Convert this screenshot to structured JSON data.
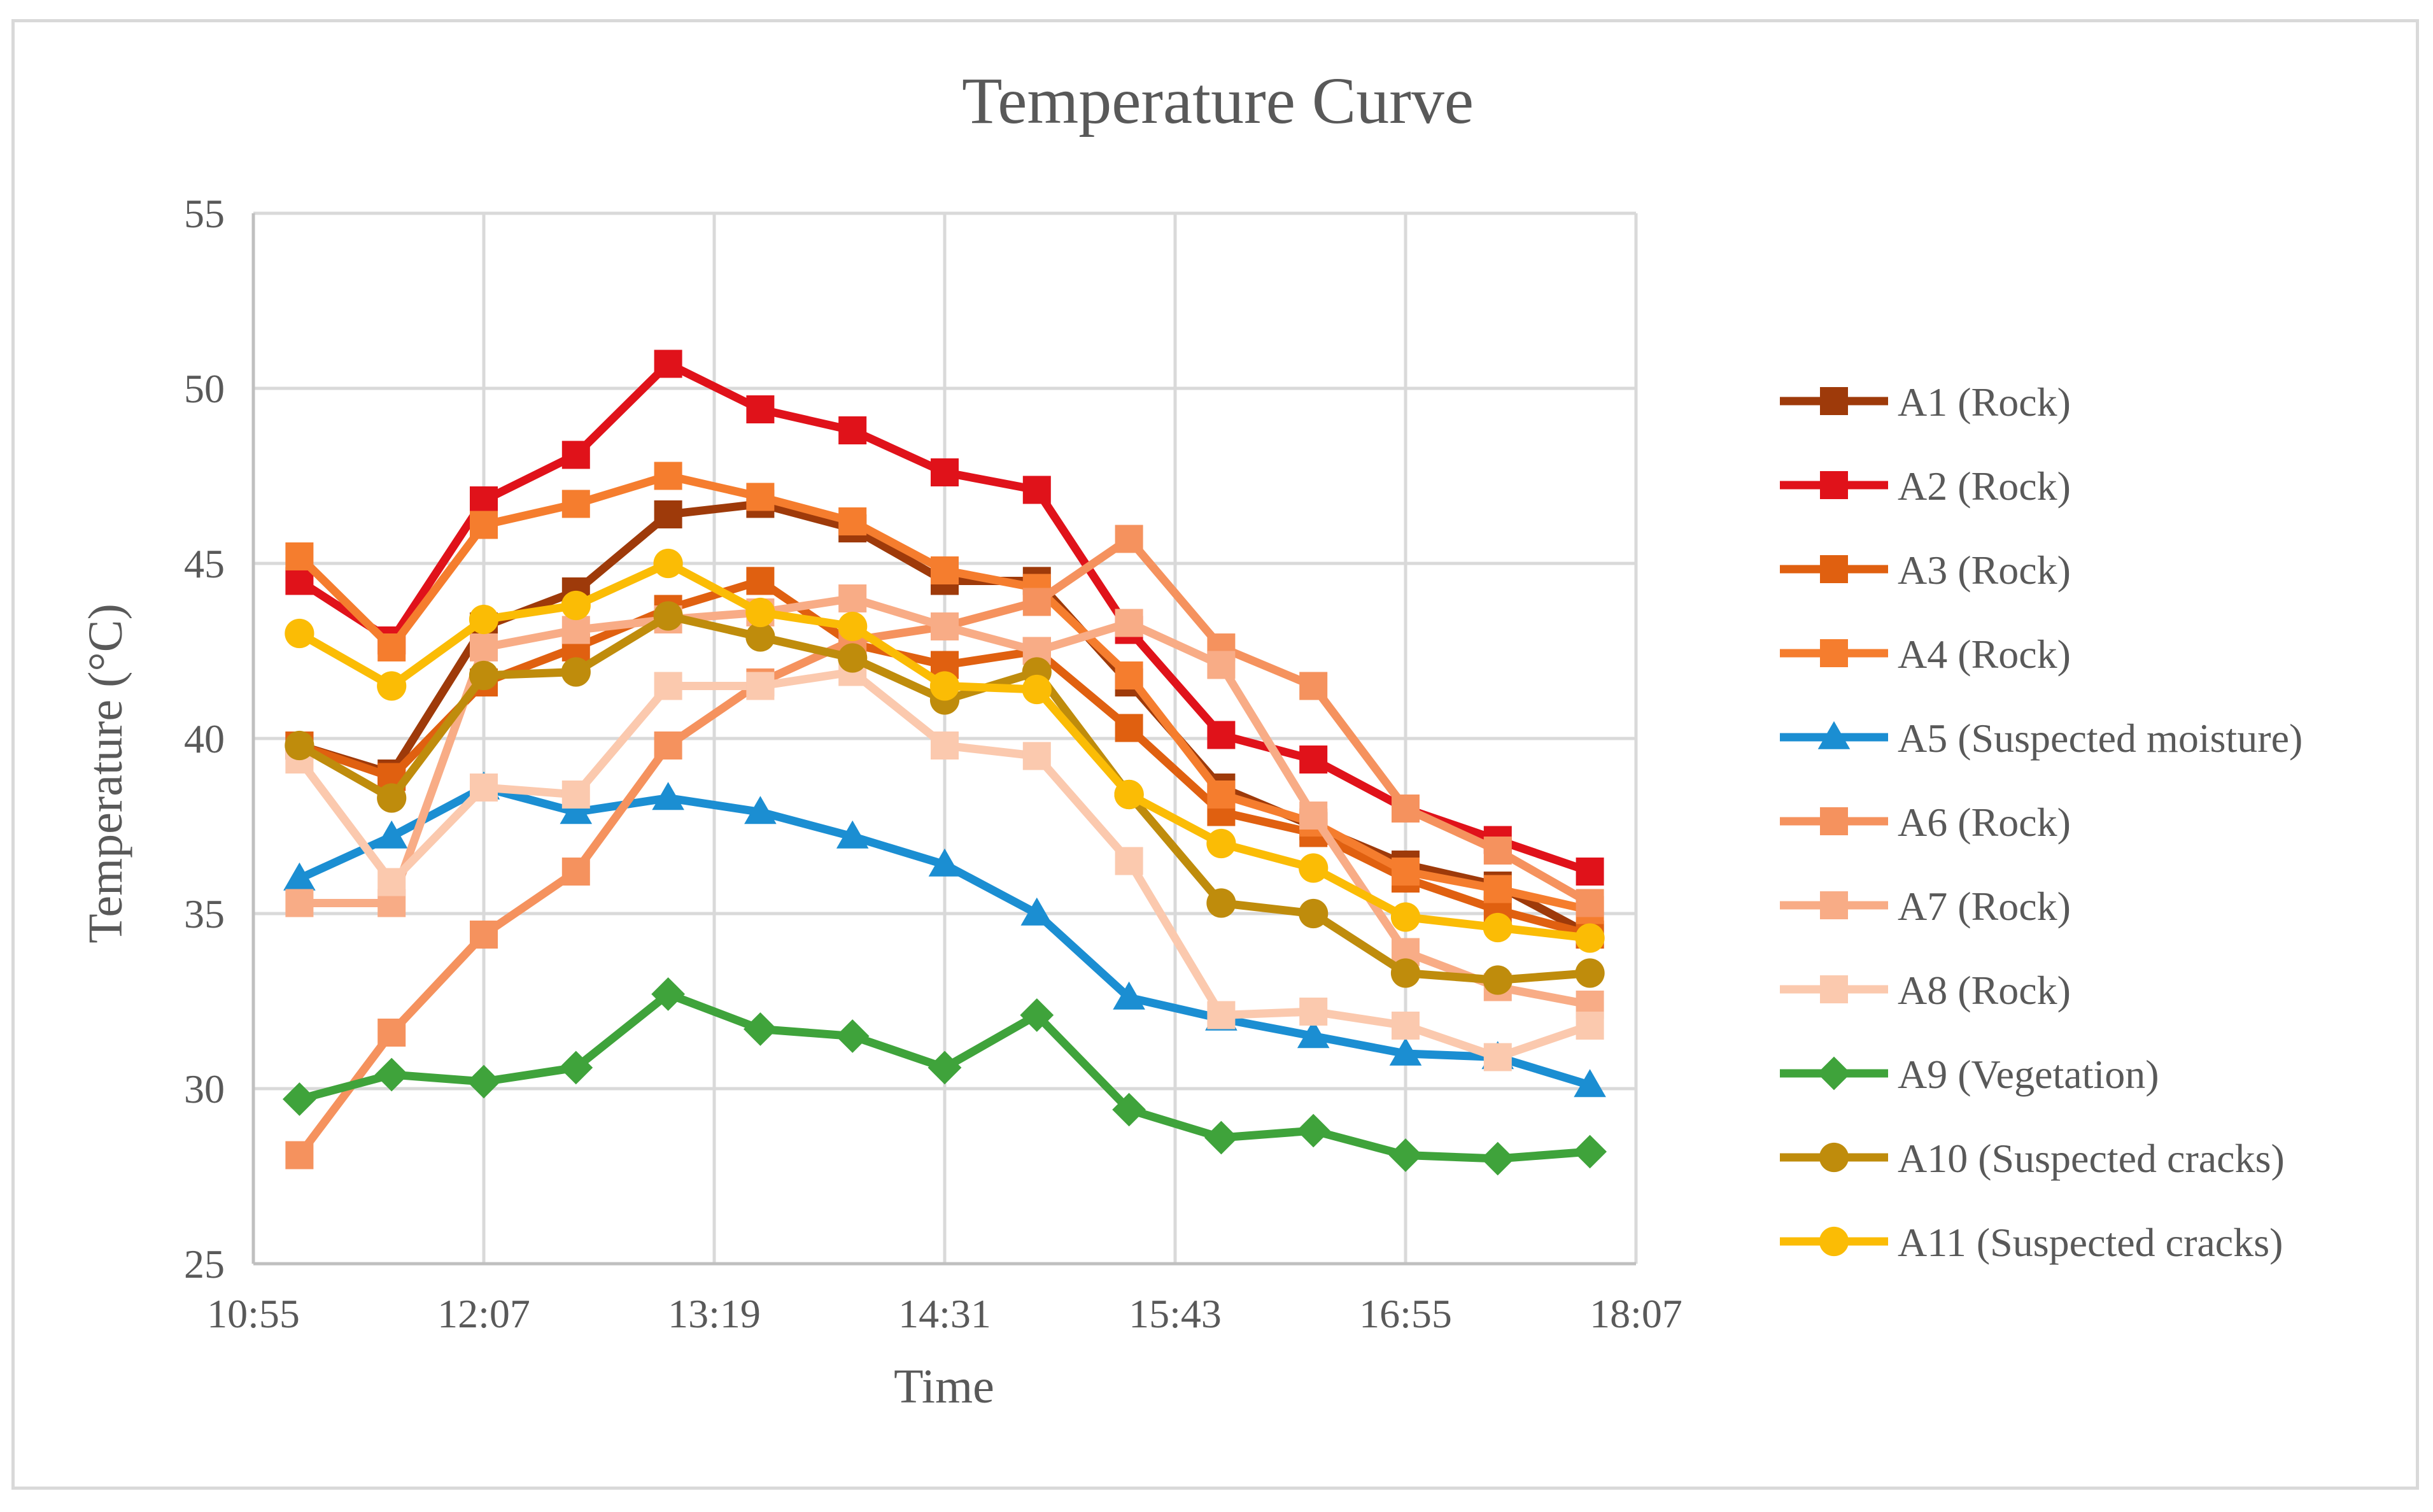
{
  "chart_data": {
    "type": "line",
    "title": "Temperature Curve",
    "xlabel": "Time",
    "ylabel": "Temperature (°C)",
    "ylim": [
      25,
      55
    ],
    "yticks": [
      25,
      30,
      35,
      40,
      45,
      50,
      55
    ],
    "xtick_labels": [
      "10:55",
      "12:07",
      "13:19",
      "14:31",
      "15:43",
      "16:55",
      "18:07"
    ],
    "grid": true,
    "legend_position": "right",
    "x": [
      0.5,
      1.5,
      2.5,
      3.5,
      4.5,
      5.5,
      6.5,
      7.5,
      8.5,
      9.5,
      10.5,
      11.5,
      12.5,
      13.5,
      14.5
    ],
    "series": [
      {
        "name": "A1 (Rock)",
        "color": "#9e3a0a",
        "marker": "square",
        "values": [
          39.8,
          39.0,
          43.2,
          44.2,
          46.4,
          46.7,
          46.0,
          44.5,
          44.5,
          41.6,
          38.6,
          37.5,
          36.4,
          35.8,
          34.4
        ]
      },
      {
        "name": "A2 (Rock)",
        "color": "#e0121a",
        "marker": "square",
        "values": [
          44.5,
          42.8,
          46.8,
          48.1,
          50.7,
          49.4,
          48.8,
          47.6,
          47.1,
          43.1,
          40.1,
          39.4,
          38.0,
          37.1,
          36.2
        ]
      },
      {
        "name": "A3 (Rock)",
        "color": "#e06010",
        "marker": "square",
        "values": [
          39.8,
          38.9,
          41.6,
          42.6,
          43.7,
          44.5,
          42.7,
          42.1,
          42.5,
          40.3,
          37.9,
          37.3,
          36.0,
          35.1,
          34.4
        ]
      },
      {
        "name": "A4 (Rock)",
        "color": "#f57d2e",
        "marker": "square",
        "values": [
          45.2,
          42.6,
          46.1,
          46.7,
          47.5,
          46.9,
          46.2,
          44.8,
          44.3,
          41.8,
          38.4,
          37.6,
          36.2,
          35.7,
          35.1
        ]
      },
      {
        "name": "A5 (Suspected moisture)",
        "color": "#1b8ed2",
        "marker": "triangle",
        "values": [
          36.0,
          37.2,
          38.6,
          37.9,
          38.3,
          37.9,
          37.2,
          36.4,
          35.0,
          32.6,
          32.0,
          31.5,
          31.0,
          30.9,
          30.1
        ]
      },
      {
        "name": "A6 (Rock)",
        "color": "#f5925e",
        "marker": "square",
        "values": [
          28.1,
          31.6,
          34.4,
          36.2,
          39.8,
          41.6,
          42.8,
          43.2,
          43.9,
          45.7,
          42.6,
          41.5,
          38.0,
          36.8,
          35.3
        ]
      },
      {
        "name": "A7 (Rock)",
        "color": "#f8ac86",
        "marker": "square",
        "values": [
          35.3,
          35.3,
          42.6,
          43.1,
          43.4,
          43.6,
          44.0,
          43.2,
          42.5,
          43.3,
          42.1,
          37.8,
          33.9,
          32.9,
          32.4
        ]
      },
      {
        "name": "A8 (Rock)",
        "color": "#fbc9ae",
        "marker": "square",
        "values": [
          39.4,
          35.9,
          38.6,
          38.4,
          41.5,
          41.5,
          41.9,
          39.8,
          39.5,
          36.5,
          32.1,
          32.2,
          31.8,
          30.9,
          31.8
        ]
      },
      {
        "name": "A9 (Vegetation)",
        "color": "#3fa33b",
        "marker": "diamond",
        "values": [
          29.7,
          30.4,
          30.2,
          30.6,
          32.7,
          31.7,
          31.5,
          30.6,
          32.1,
          29.4,
          28.6,
          28.8,
          28.1,
          28.0,
          28.2
        ]
      },
      {
        "name": "A10 (Suspected cracks)",
        "color": "#bf8c0c",
        "marker": "circle",
        "values": [
          39.8,
          38.3,
          41.8,
          41.9,
          43.5,
          42.9,
          42.3,
          41.1,
          41.9,
          38.4,
          35.3,
          35.0,
          33.3,
          33.1,
          33.3
        ]
      },
      {
        "name": "A11 (Suspected cracks)",
        "color": "#fbbc05",
        "marker": "circle",
        "values": [
          43.0,
          41.5,
          43.4,
          43.8,
          45.0,
          43.6,
          43.2,
          41.5,
          41.4,
          38.4,
          37.0,
          36.3,
          34.9,
          34.6,
          34.3
        ]
      }
    ]
  }
}
